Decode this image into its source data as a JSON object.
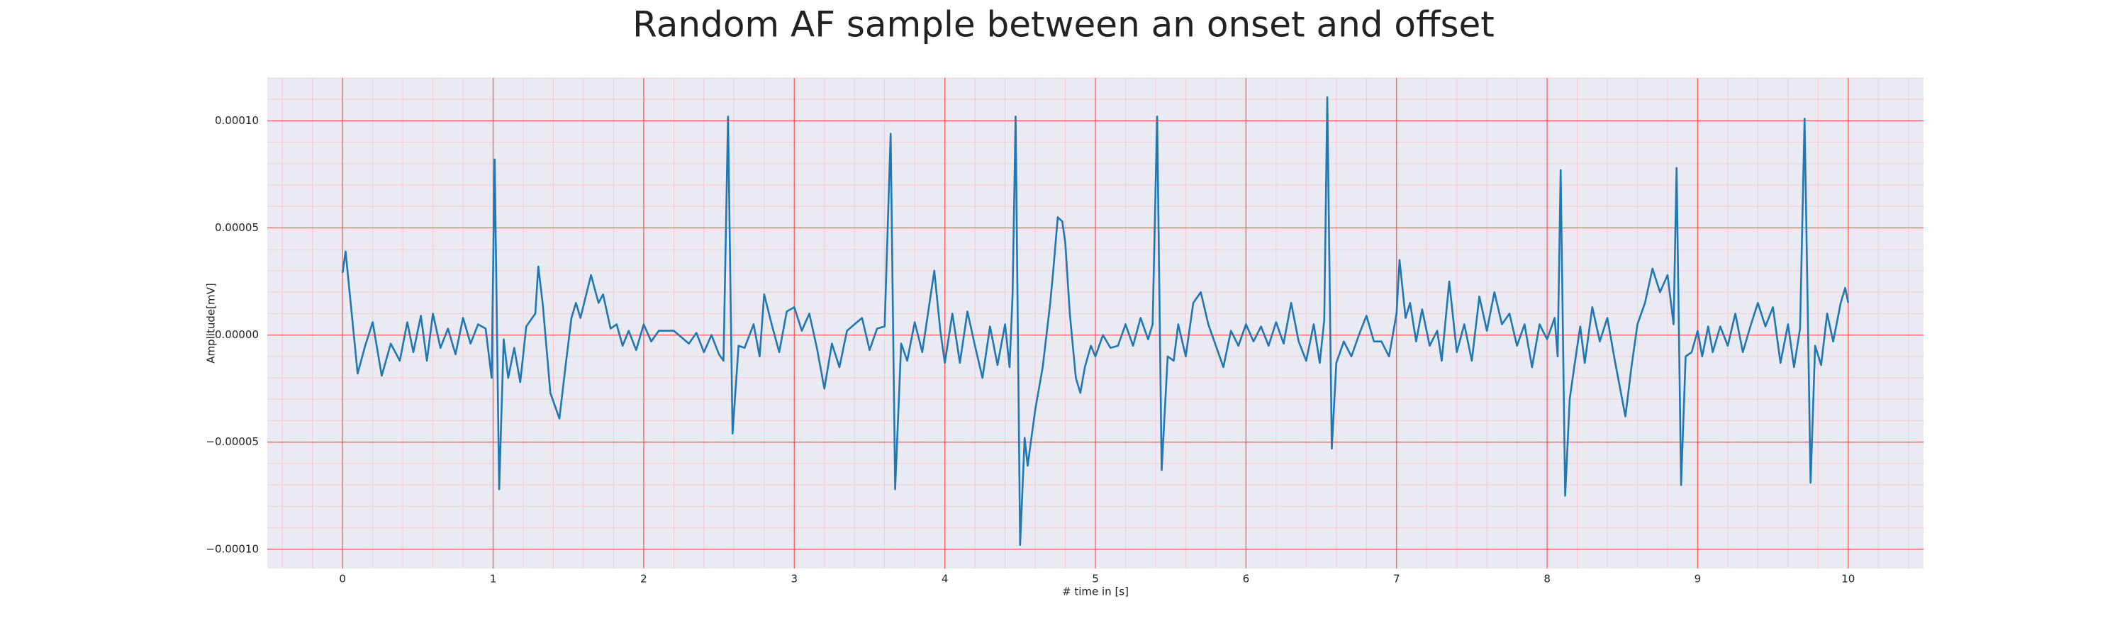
{
  "chart_data": {
    "type": "line",
    "title": "Random AF sample between an onset and offset",
    "xlabel": "# time in [s]",
    "ylabel": "Amplitude[mV]",
    "color": "#1f77b4",
    "grid": true,
    "minor_grid": true,
    "xlim": [
      -0.5,
      10.5
    ],
    "ylim": [
      -0.000109,
      0.00012
    ],
    "xticks": [
      0,
      1,
      2,
      3,
      4,
      5,
      6,
      7,
      8,
      9,
      10
    ],
    "yticks": [
      {
        "value": -0.0001,
        "label": "−0.00010"
      },
      {
        "value": -5e-05,
        "label": "−0.00005"
      },
      {
        "value": 0,
        "label": "0.00000"
      },
      {
        "value": 5e-05,
        "label": "0.00005"
      },
      {
        "value": 0.0001,
        "label": "0.00010"
      }
    ],
    "xminorticks": [
      -0.4,
      -0.2,
      0,
      0.2,
      0.4,
      0.6,
      0.8,
      1,
      1.2,
      1.4,
      1.6,
      1.8,
      2,
      2.2,
      2.4,
      2.6,
      2.8,
      3,
      3.2,
      3.4,
      3.6,
      3.8,
      4,
      4.2,
      4.4,
      4.6,
      4.8,
      5,
      5.2,
      5.4,
      5.6,
      5.8,
      6,
      6.2,
      6.4,
      6.6,
      6.8,
      7,
      7.2,
      7.4,
      7.6,
      7.8,
      8,
      8.2,
      8.4,
      8.6,
      8.8,
      9,
      9.2,
      9.4,
      9.6,
      9.8,
      10,
      10.2,
      10.4
    ],
    "yminorticks": [
      -0.0001,
      -9e-05,
      -8e-05,
      -7e-05,
      -6e-05,
      -5e-05,
      -4e-05,
      -3e-05,
      -2e-05,
      -1e-05,
      0,
      1e-05,
      2e-05,
      3e-05,
      4e-05,
      5e-05,
      6e-05,
      7e-05,
      8e-05,
      9e-05,
      0.0001,
      0.00011,
      0.00012
    ],
    "x": [
      0,
      0.02,
      0.1,
      0.15,
      0.2,
      0.26,
      0.32,
      0.38,
      0.43,
      0.47,
      0.52,
      0.56,
      0.6,
      0.65,
      0.7,
      0.75,
      0.8,
      0.85,
      0.9,
      0.95,
      0.99,
      1.01,
      1.04,
      1.07,
      1.1,
      1.14,
      1.18,
      1.22,
      1.28,
      1.3,
      1.33,
      1.38,
      1.44,
      1.48,
      1.52,
      1.55,
      1.58,
      1.65,
      1.7,
      1.73,
      1.78,
      1.82,
      1.86,
      1.9,
      1.95,
      2.0,
      2.05,
      2.1,
      2.2,
      2.3,
      2.35,
      2.4,
      2.45,
      2.5,
      2.53,
      2.56,
      2.59,
      2.63,
      2.67,
      2.73,
      2.77,
      2.8,
      2.85,
      2.9,
      2.95,
      3.0,
      3.05,
      3.1,
      3.15,
      3.2,
      3.25,
      3.3,
      3.35,
      3.4,
      3.45,
      3.5,
      3.55,
      3.6,
      3.64,
      3.67,
      3.71,
      3.75,
      3.8,
      3.85,
      3.93,
      3.97,
      4.0,
      4.05,
      4.1,
      4.15,
      4.2,
      4.25,
      4.3,
      4.35,
      4.4,
      4.43,
      4.45,
      4.47,
      4.5,
      4.53,
      4.55,
      4.6,
      4.65,
      4.7,
      4.72,
      4.75,
      4.78,
      4.8,
      4.83,
      4.87,
      4.9,
      4.93,
      4.97,
      5.0,
      5.05,
      5.1,
      5.15,
      5.2,
      5.25,
      5.3,
      5.35,
      5.38,
      5.41,
      5.44,
      5.48,
      5.52,
      5.55,
      5.6,
      5.65,
      5.7,
      5.75,
      5.8,
      5.85,
      5.9,
      5.95,
      6.0,
      6.05,
      6.1,
      6.15,
      6.2,
      6.25,
      6.3,
      6.35,
      6.4,
      6.45,
      6.49,
      6.52,
      6.54,
      6.57,
      6.6,
      6.65,
      6.7,
      6.75,
      6.8,
      6.85,
      6.9,
      6.95,
      7.0,
      7.02,
      7.06,
      7.09,
      7.13,
      7.17,
      7.22,
      7.27,
      7.3,
      7.35,
      7.4,
      7.45,
      7.5,
      7.55,
      7.6,
      7.65,
      7.7,
      7.75,
      7.8,
      7.85,
      7.9,
      7.95,
      8.0,
      8.05,
      8.07,
      8.09,
      8.12,
      8.15,
      8.18,
      8.22,
      8.25,
      8.3,
      8.35,
      8.4,
      8.45,
      8.52,
      8.56,
      8.6,
      8.65,
      8.7,
      8.75,
      8.8,
      8.84,
      8.86,
      8.89,
      8.92,
      8.96,
      9.0,
      9.03,
      9.07,
      9.1,
      9.15,
      9.2,
      9.25,
      9.3,
      9.35,
      9.4,
      9.45,
      9.5,
      9.55,
      9.6,
      9.64,
      9.68,
      9.71,
      9.75,
      9.78,
      9.82,
      9.86,
      9.9,
      9.95,
      9.98,
      10.0
    ],
    "values": [
      2.9e-05,
      3.9e-05,
      -1.8e-05,
      -5e-06,
      6e-06,
      -1.9e-05,
      -4e-06,
      -1.2e-05,
      6e-06,
      -8e-06,
      9e-06,
      -1.2e-05,
      1e-05,
      -6e-06,
      3e-06,
      -9e-06,
      8e-06,
      -4e-06,
      5e-06,
      3e-06,
      -2e-05,
      8.2e-05,
      -7.2e-05,
      -2e-06,
      -2e-05,
      -6e-06,
      -2.2e-05,
      4e-06,
      1e-05,
      3.2e-05,
      1.4e-05,
      -2.7e-05,
      -3.9e-05,
      -1.5e-05,
      8e-06,
      1.5e-05,
      8e-06,
      2.8e-05,
      1.5e-05,
      1.9e-05,
      3e-06,
      5e-06,
      -5e-06,
      2e-06,
      -7e-06,
      5e-06,
      -3e-06,
      2e-06,
      2e-06,
      -4e-06,
      1e-06,
      -8e-06,
      0,
      -9e-06,
      -1.2e-05,
      0.000102,
      -4.6e-05,
      -5e-06,
      -6e-06,
      5e-06,
      -1e-05,
      1.9e-05,
      5e-06,
      -8e-06,
      1.1e-05,
      1.3e-05,
      2e-06,
      1e-05,
      -6e-06,
      -2.5e-05,
      -4e-06,
      -1.5e-05,
      2e-06,
      5e-06,
      8e-06,
      -7e-06,
      3e-06,
      4e-06,
      9.4e-05,
      -7.2e-05,
      -4e-06,
      -1.2e-05,
      6e-06,
      -8e-06,
      3e-05,
      2e-06,
      -1.3e-05,
      1e-05,
      -1.3e-05,
      1.1e-05,
      -5e-06,
      -2e-05,
      4e-06,
      -1.4e-05,
      5e-06,
      -1.5e-05,
      1.9e-05,
      0.000102,
      -9.8e-05,
      -4.8e-05,
      -6.1e-05,
      -3.5e-05,
      -1.5e-05,
      1.5e-05,
      3e-05,
      5.5e-05,
      5.3e-05,
      4.3e-05,
      1e-05,
      -2e-05,
      -2.7e-05,
      -1.5e-05,
      -5e-06,
      -1e-05,
      0,
      -6e-06,
      -5e-06,
      5e-06,
      -5e-06,
      8e-06,
      -2e-06,
      5e-06,
      0.000102,
      -6.3e-05,
      -1e-05,
      -1.2e-05,
      5e-06,
      -1e-05,
      1.5e-05,
      2e-05,
      5e-06,
      -5e-06,
      -1.5e-05,
      2e-06,
      -5e-06,
      5e-06,
      -3e-06,
      4e-06,
      -5e-06,
      6e-06,
      -4e-06,
      1.5e-05,
      -3e-06,
      -1.2e-05,
      5e-06,
      -1.3e-05,
      7e-06,
      0.000111,
      -5.3e-05,
      -1.3e-05,
      -3e-06,
      -1e-05,
      0,
      9e-06,
      -3e-06,
      -3e-06,
      -1e-05,
      1e-05,
      3.5e-05,
      8e-06,
      1.5e-05,
      -3e-06,
      1.2e-05,
      -5e-06,
      2e-06,
      -1.2e-05,
      2.5e-05,
      -8e-06,
      5e-06,
      -1.2e-05,
      1.8e-05,
      2e-06,
      2e-05,
      5e-06,
      1e-05,
      -5e-06,
      5e-06,
      -1.5e-05,
      5e-06,
      -2e-06,
      8e-06,
      -1e-05,
      7.7e-05,
      -7.5e-05,
      -3e-05,
      -1.5e-05,
      4e-06,
      -1.3e-05,
      1.3e-05,
      -3e-06,
      8e-06,
      -1.2e-05,
      -3.8e-05,
      -1.5e-05,
      5e-06,
      1.5e-05,
      3.1e-05,
      2e-05,
      2.8e-05,
      5e-06,
      7.8e-05,
      -7e-05,
      -1e-05,
      -8e-06,
      2e-06,
      -1e-05,
      4e-06,
      -8e-06,
      4e-06,
      -5e-06,
      1e-05,
      -8e-06,
      4e-06,
      1.5e-05,
      4e-06,
      1.3e-05,
      -1.3e-05,
      5e-06,
      -1.5e-05,
      3e-06,
      0.000101,
      -6.9e-05,
      -5e-06,
      -1.4e-05,
      1e-05,
      -3e-06,
      1.5e-05,
      2.2e-05,
      1.5e-05
    ]
  }
}
